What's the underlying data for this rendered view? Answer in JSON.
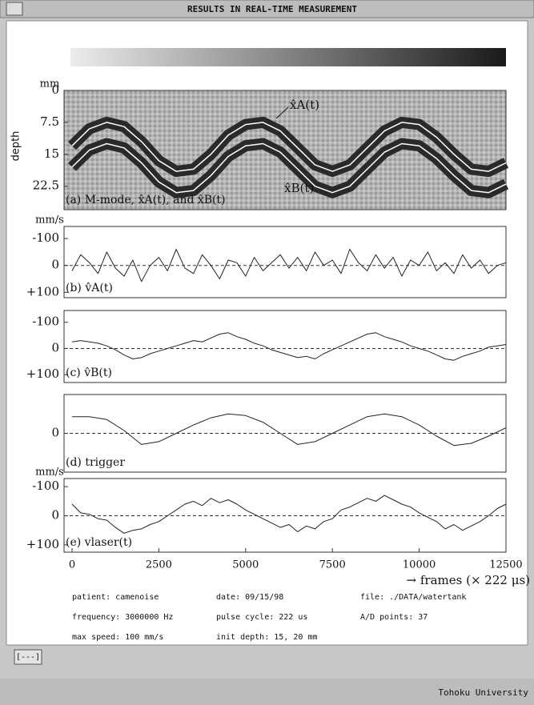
{
  "window": {
    "title": "RESULTS IN REAL-TIME MEASUREMENT",
    "button": "[---]",
    "footer": "Tohoku University"
  },
  "info": [
    [
      "patient: camenoise",
      "date: 09/15/98",
      "file: ./DATA/watertank"
    ],
    [
      "frequency: 3000000 Hz",
      "pulse cycle: 222 us",
      "A/D points: 37"
    ],
    [
      "max speed: 100 mm/s",
      "init depth: 15, 20 mm"
    ]
  ],
  "chart_data": [
    {
      "type": "mmode",
      "label": "(a) M-mode, x̂A(t), and x̂B(t)",
      "yunit": "mm",
      "ylabel": "depth",
      "annotations": [
        "x̂A(t)",
        "x̂B(t)"
      ],
      "inverted": true,
      "xlim": [
        -230,
        12500
      ],
      "ylim": [
        0,
        28
      ],
      "yticks": [
        0,
        7.5,
        15,
        22.5
      ],
      "x": [
        0,
        500,
        1000,
        1500,
        2000,
        2500,
        3000,
        3500,
        4000,
        4500,
        5000,
        5500,
        6000,
        6500,
        7000,
        7500,
        8000,
        8500,
        9000,
        9500,
        10000,
        10500,
        11000,
        11500,
        12000,
        12500
      ],
      "series": [
        {
          "color": "#ffffff",
          "values": [
            13,
            9,
            7.5,
            8.5,
            12,
            16.5,
            19,
            18.5,
            15,
            10.5,
            8,
            7.5,
            9.5,
            13.5,
            17.5,
            19,
            17.5,
            13.5,
            9.5,
            7.5,
            8,
            11,
            15,
            18.5,
            19,
            17
          ]
        },
        {
          "color": "#ffffff",
          "values": [
            18,
            14,
            12.5,
            13.5,
            17,
            21.5,
            24,
            23.5,
            20,
            15.5,
            13,
            12.5,
            14.5,
            18.5,
            22.5,
            24,
            22.5,
            18.5,
            14.5,
            12.5,
            13,
            16,
            20,
            23.5,
            24,
            22
          ]
        }
      ]
    },
    {
      "type": "line",
      "label": "(b) v̂A(t)",
      "yunit": "mm/s",
      "inverted": true,
      "zero_line": true,
      "xlim": [
        -230,
        12500
      ],
      "ylim": [
        -145,
        120
      ],
      "yticks": [
        -100,
        0,
        {
          "value": 100,
          "label": "+100"
        }
      ],
      "x": [
        0,
        250,
        500,
        750,
        1000,
        1250,
        1500,
        1750,
        2000,
        2250,
        2500,
        2750,
        3000,
        3250,
        3500,
        3750,
        4000,
        4250,
        4500,
        4750,
        5000,
        5250,
        5500,
        5750,
        6000,
        6250,
        6500,
        6750,
        7000,
        7250,
        7500,
        7750,
        8000,
        8250,
        8500,
        8750,
        9000,
        9250,
        9500,
        9750,
        10000,
        10250,
        10500,
        10750,
        11000,
        11250,
        11500,
        11750,
        12000,
        12250,
        12500
      ],
      "series": [
        {
          "color": "#222222",
          "values": [
            20,
            -40,
            -10,
            30,
            -50,
            10,
            40,
            -20,
            60,
            0,
            -30,
            20,
            -60,
            10,
            30,
            -40,
            0,
            50,
            -20,
            -10,
            40,
            -30,
            20,
            -10,
            -40,
            10,
            -30,
            20,
            -50,
            0,
            -20,
            30,
            -60,
            -10,
            20,
            -40,
            10,
            -30,
            40,
            -20,
            0,
            -50,
            20,
            -10,
            30,
            -40,
            10,
            -20,
            30,
            0,
            -10
          ]
        }
      ]
    },
    {
      "type": "line",
      "label": "(c) v̂B(t)",
      "inverted": true,
      "zero_line": true,
      "xlim": [
        -230,
        12500
      ],
      "ylim": [
        -145,
        130
      ],
      "yticks": [
        -100,
        0,
        {
          "value": 100,
          "label": "+100"
        }
      ],
      "x": [
        0,
        250,
        500,
        750,
        1000,
        1250,
        1500,
        1750,
        2000,
        2250,
        2500,
        2750,
        3000,
        3250,
        3500,
        3750,
        4000,
        4250,
        4500,
        4750,
        5000,
        5250,
        5500,
        5750,
        6000,
        6250,
        6500,
        6750,
        7000,
        7250,
        7500,
        7750,
        8000,
        8250,
        8500,
        8750,
        9000,
        9250,
        9500,
        9750,
        10000,
        10250,
        10500,
        10750,
        11000,
        11250,
        11500,
        11750,
        12000,
        12250,
        12500
      ],
      "series": [
        {
          "color": "#222222",
          "values": [
            -25,
            -30,
            -25,
            -20,
            -10,
            5,
            25,
            40,
            35,
            20,
            10,
            0,
            -10,
            -20,
            -30,
            -25,
            -40,
            -55,
            -60,
            -45,
            -35,
            -20,
            -10,
            5,
            15,
            25,
            35,
            30,
            40,
            20,
            5,
            -10,
            -25,
            -40,
            -55,
            -60,
            -45,
            -35,
            -25,
            -10,
            0,
            10,
            25,
            40,
            45,
            30,
            20,
            10,
            -5,
            -10,
            -15
          ]
        }
      ]
    },
    {
      "type": "line",
      "label": "(d) trigger",
      "inverted": true,
      "zero_line": true,
      "xlim": [
        -230,
        12500
      ],
      "ylim": [
        -70,
        70
      ],
      "yticks": [
        0
      ],
      "x": [
        0,
        500,
        1000,
        1500,
        2000,
        2500,
        3000,
        3500,
        4000,
        4500,
        5000,
        5500,
        6000,
        6500,
        7000,
        7500,
        8000,
        8500,
        9000,
        9500,
        10000,
        10500,
        11000,
        11500,
        12000,
        12500
      ],
      "series": [
        {
          "color": "#222222",
          "values": [
            -30,
            -30,
            -25,
            -5,
            20,
            15,
            0,
            -15,
            -28,
            -35,
            -32,
            -20,
            0,
            20,
            15,
            0,
            -15,
            -30,
            -35,
            -30,
            -15,
            5,
            22,
            18,
            5,
            -10
          ]
        }
      ]
    },
    {
      "type": "line",
      "label": "(e) vlaser(t)",
      "yunit": "mm/s",
      "inverted": true,
      "zero_line": true,
      "xlim": [
        -230,
        12500
      ],
      "ylim": [
        -128,
        125
      ],
      "yticks": [
        -100,
        0,
        {
          "value": 100,
          "label": "+100"
        }
      ],
      "xticks": [
        0,
        2500,
        5000,
        7500,
        10000,
        12500
      ],
      "xlabel": "→ frames (× 222 μs)",
      "x": [
        0,
        250,
        500,
        750,
        1000,
        1250,
        1500,
        1750,
        2000,
        2250,
        2500,
        2750,
        3000,
        3250,
        3500,
        3750,
        4000,
        4250,
        4500,
        4750,
        5000,
        5250,
        5500,
        5750,
        6000,
        6250,
        6500,
        6750,
        7000,
        7250,
        7500,
        7750,
        8000,
        8250,
        8500,
        8750,
        9000,
        9250,
        9500,
        9750,
        10000,
        10250,
        10500,
        10750,
        11000,
        11250,
        11500,
        11750,
        12000,
        12250,
        12500
      ],
      "series": [
        {
          "color": "#222222",
          "values": [
            -40,
            -10,
            -5,
            10,
            15,
            40,
            60,
            50,
            45,
            30,
            20,
            0,
            -20,
            -40,
            -50,
            -35,
            -60,
            -45,
            -55,
            -40,
            -20,
            -5,
            10,
            25,
            40,
            30,
            55,
            35,
            45,
            20,
            10,
            -20,
            -30,
            -45,
            -60,
            -50,
            -70,
            -55,
            -40,
            -30,
            -10,
            5,
            20,
            45,
            30,
            50,
            35,
            20,
            0,
            -25,
            -40
          ]
        }
      ]
    }
  ]
}
